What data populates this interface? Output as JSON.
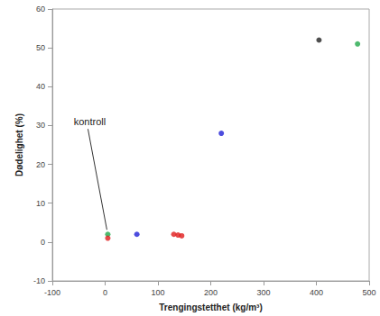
{
  "chart_data": {
    "type": "scatter",
    "x_label": "Trengingstetthet (kg/m³)",
    "y_label": "Dødelighet (%)",
    "x": [
      5,
      5,
      60,
      130,
      138,
      145,
      220,
      405,
      478
    ],
    "values": [
      2,
      1,
      2,
      2,
      1.8,
      1.6,
      28,
      52,
      51
    ],
    "colors": [
      "#22a84a",
      "#e01b1b",
      "#1f1fd6",
      "#e01b1b",
      "#e01b1b",
      "#e01b1b",
      "#1f1fd6",
      "#222222",
      "#22a84a"
    ],
    "xlim": [
      -100,
      500
    ],
    "xticks": [
      -100,
      0,
      100,
      200,
      300,
      400,
      500
    ],
    "ylim": [
      -10,
      60
    ],
    "yticks": [
      -10,
      0,
      10,
      20,
      30,
      40,
      50,
      60
    ],
    "grid": false,
    "annotations": [
      {
        "text": "kontroll",
        "x": 5,
        "y": 2
      }
    ]
  }
}
